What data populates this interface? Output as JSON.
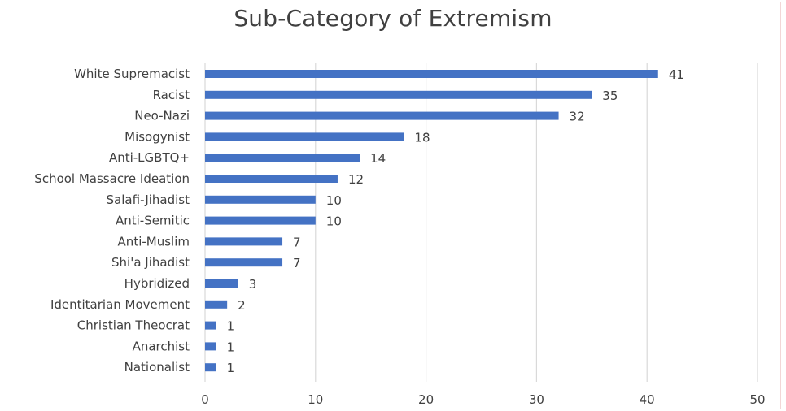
{
  "chart_data": {
    "type": "bar",
    "orientation": "horizontal",
    "title": "Sub-Category of Extremism",
    "xlabel": "",
    "ylabel": "",
    "categories": [
      "White Supremacist",
      "Racist",
      "Neo-Nazi",
      "Misogynist",
      "Anti-LGBTQ+",
      "School Massacre Ideation",
      "Salafi-Jihadist",
      "Anti-Semitic",
      "Anti-Muslim",
      "Shi'a Jihadist",
      "Hybridized",
      "Identitarian Movement",
      "Christian Theocrat",
      "Anarchist",
      "Nationalist"
    ],
    "values": [
      41,
      35,
      32,
      18,
      14,
      12,
      10,
      10,
      7,
      7,
      3,
      2,
      1,
      1,
      1
    ],
    "xlim": [
      0,
      50
    ],
    "xticks": [
      0,
      10,
      20,
      30,
      40,
      50
    ],
    "grid": "vertical",
    "data_labels": true,
    "bar_color": "#4472C4",
    "grid_color": "#d9d9d9",
    "text_color": "#404040"
  }
}
